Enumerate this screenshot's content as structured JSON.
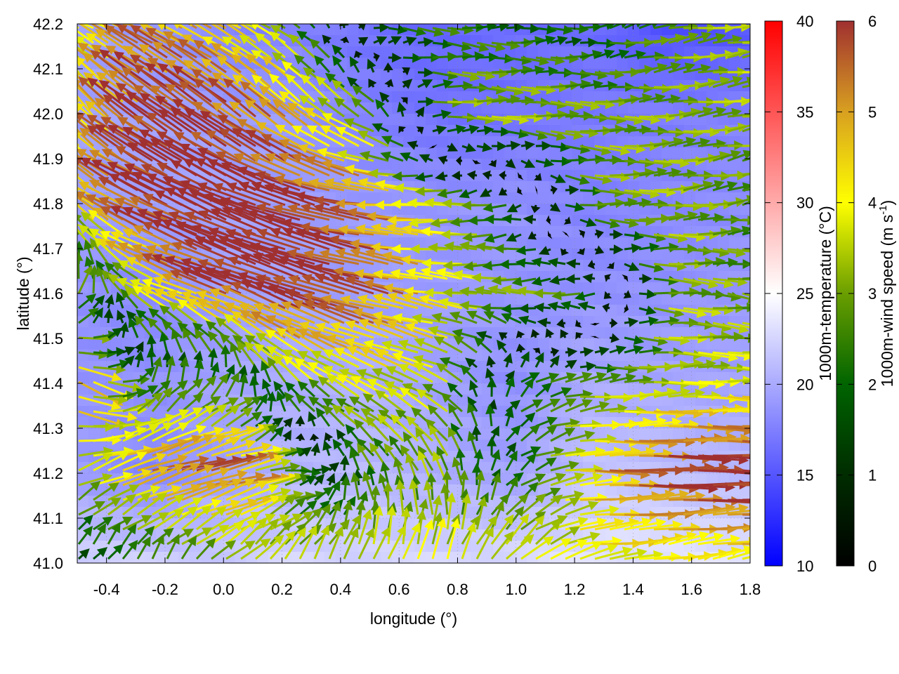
{
  "chart_data": {
    "type": "heatmap",
    "title": "",
    "xlabel": "longitude (°)",
    "ylabel": "latitude (°)",
    "xlim": [
      -0.5,
      1.8
    ],
    "ylim": [
      41.0,
      42.2
    ],
    "grid": true,
    "xticks": [
      "-0.4",
      "-0.2",
      "0.0",
      "0.2",
      "0.4",
      "0.6",
      "0.8",
      "1.0",
      "1.2",
      "1.4",
      "1.6",
      "1.8"
    ],
    "yticks": [
      "41.0",
      "41.1",
      "41.2",
      "41.3",
      "41.4",
      "41.5",
      "41.6",
      "41.7",
      "41.8",
      "41.9",
      "42.0",
      "42.1",
      "42.2"
    ],
    "temperature_colorbar": {
      "label": "1000m-temperature (°C)",
      "range": [
        10,
        40
      ],
      "ticks": [
        "10",
        "15",
        "20",
        "25",
        "30",
        "35",
        "40"
      ],
      "colors": {
        "low": "#0000ff",
        "mid": "#ffffff",
        "high": "#ff0000"
      }
    },
    "wind_colorbar": {
      "label_main": "1000m-wind speed (m s",
      "label_sup": "-1",
      "label_end": ")",
      "range": [
        0,
        6
      ],
      "ticks": [
        "0",
        "1",
        "2",
        "3",
        "4",
        "5",
        "6"
      ],
      "colors": [
        "#000000",
        "#002c00",
        "#006400",
        "#6a9e00",
        "#ffff00",
        "#d8a020",
        "#a03030"
      ]
    },
    "grid_lon": [
      -0.5,
      -0.25,
      0.0,
      0.25,
      0.5,
      0.75,
      1.0,
      1.25,
      1.5,
      1.8
    ],
    "grid_lat": [
      41.0,
      41.2,
      41.4,
      41.6,
      41.8,
      42.0,
      42.2
    ],
    "temperature": [
      [
        22,
        22,
        22,
        23,
        23,
        23,
        23,
        23,
        23,
        23
      ],
      [
        19,
        18,
        20,
        21,
        21,
        20,
        19,
        21,
        21,
        21
      ],
      [
        19,
        19,
        20,
        20,
        20,
        19,
        18,
        20,
        20,
        20
      ],
      [
        19,
        18,
        19,
        19,
        19,
        19,
        19,
        19,
        19,
        19
      ],
      [
        19,
        19,
        19,
        19,
        19,
        19,
        19,
        18,
        18,
        18
      ],
      [
        19,
        19,
        19,
        19,
        18,
        17,
        17,
        17,
        17,
        17
      ],
      [
        19,
        19,
        18,
        18,
        17,
        16,
        16,
        16,
        14,
        15
      ]
    ],
    "wind_u": [
      [
        1,
        1,
        2,
        1.5,
        1,
        1.5,
        3,
        4.5,
        4,
        4
      ],
      [
        3,
        5,
        5,
        2,
        -1,
        -1,
        2,
        5,
        6,
        6
      ],
      [
        4,
        0.5,
        1,
        -2,
        -3,
        -3,
        1.5,
        2.5,
        3,
        3.5
      ],
      [
        1,
        -3,
        -5,
        -5.5,
        -5.5,
        -4.5,
        -3.5,
        -3,
        3,
        3
      ],
      [
        -3,
        -5,
        -5.5,
        -6,
        -6,
        -4.5,
        -2,
        3,
        3.5,
        3
      ],
      [
        -2,
        -4.5,
        -5,
        -4,
        -3,
        3,
        3.5,
        3.5,
        3.5,
        3.5
      ],
      [
        -3,
        -5,
        -4.5,
        -3,
        2,
        2.5,
        2.5,
        2,
        3,
        3
      ]
    ],
    "wind_v": [
      [
        1,
        1.5,
        2,
        3,
        4,
        4,
        3,
        0.5,
        0.3,
        0.2
      ],
      [
        1,
        1.5,
        1.5,
        0.5,
        2.5,
        3,
        1,
        -0.5,
        -0.5,
        -0.3
      ],
      [
        -2,
        2.5,
        2.5,
        2.5,
        1.5,
        1,
        1,
        0,
        0.2,
        0.3
      ],
      [
        3,
        2,
        2,
        2,
        1,
        0.3,
        0,
        0.2,
        0.2,
        0
      ],
      [
        3,
        2.5,
        2.5,
        1.5,
        0.5,
        0,
        0,
        0.3,
        0.5,
        0.5
      ],
      [
        3,
        3,
        3,
        3,
        2,
        0.5,
        0.3,
        0,
        0,
        0
      ],
      [
        1,
        2,
        2,
        2,
        0.5,
        0,
        0,
        0,
        0,
        0
      ]
    ]
  }
}
